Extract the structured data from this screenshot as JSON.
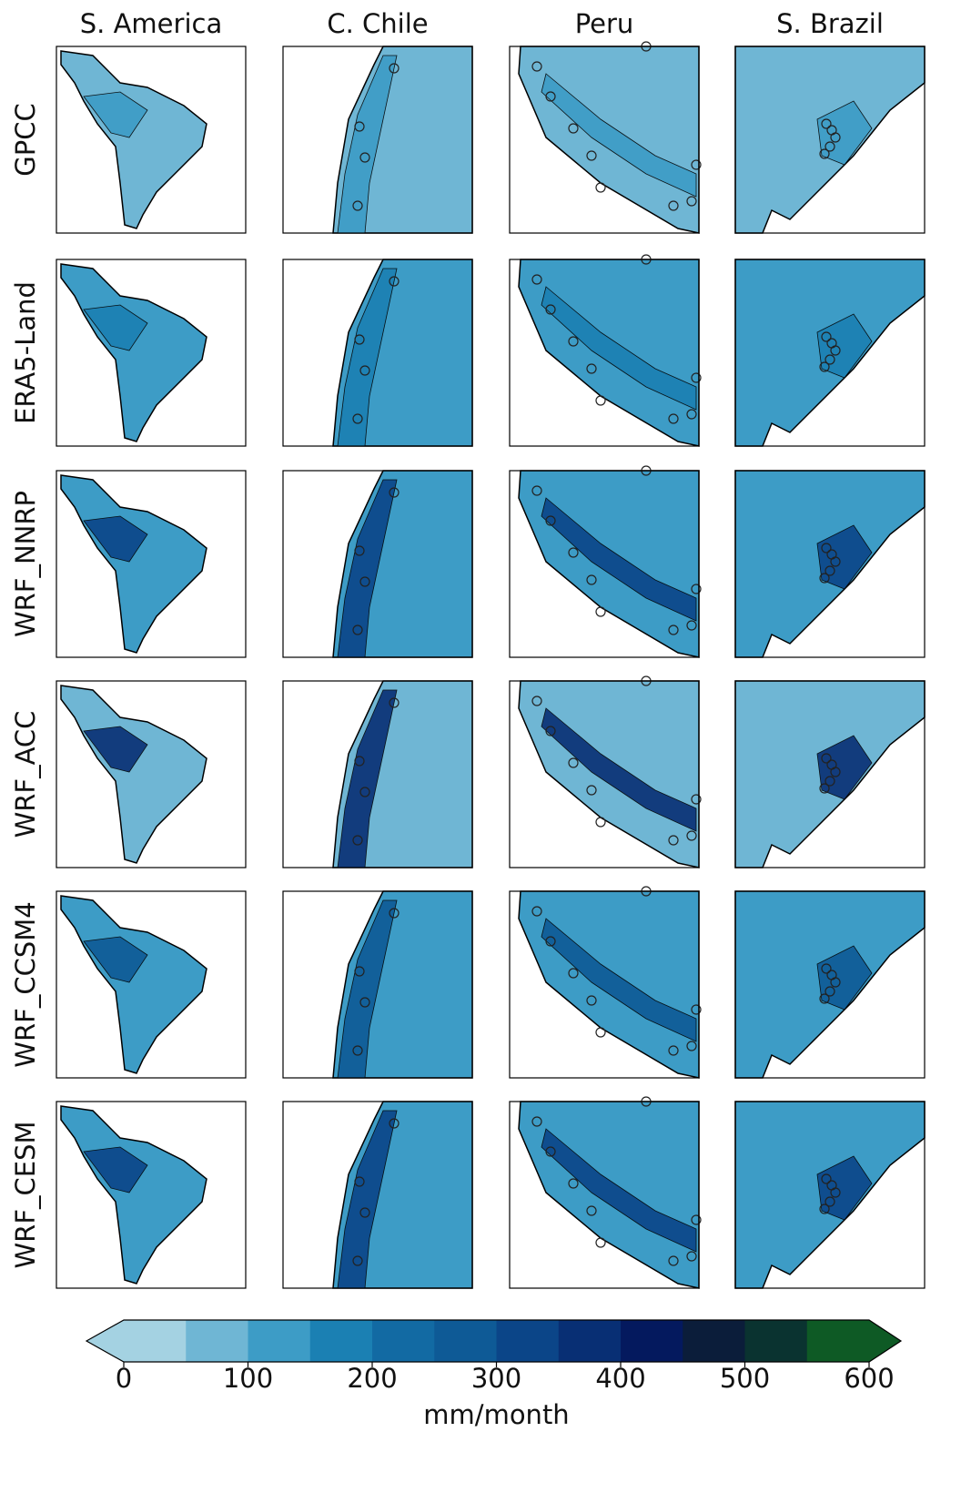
{
  "column_titles": [
    "S. America",
    "C. Chile",
    "Peru",
    "S. Brazil"
  ],
  "row_labels": [
    "GPCC",
    "ERA5-Land",
    "WRF_NNRP",
    "WRF_ACC",
    "WRF_CCSM4",
    "WRF_CESM"
  ],
  "colorbar": {
    "label": "mm/month",
    "lim": [
      0,
      600
    ],
    "ticks": [
      0,
      100,
      200,
      300,
      400,
      500,
      600
    ],
    "levels": [
      0,
      50,
      100,
      150,
      200,
      250,
      300,
      350,
      400,
      450,
      500,
      550,
      600
    ],
    "colors": [
      "#a4d2e2",
      "#6fb6d4",
      "#3d9cc6",
      "#1b80b3",
      "#126aa3",
      "#0e5a96",
      "#0b4588",
      "#082f74",
      "#04195e",
      "#0b1d3a",
      "#0a3330",
      "#0e5a25"
    ],
    "extend_colors": [
      "#a4d2e2",
      "#0e5a25"
    ]
  }
}
